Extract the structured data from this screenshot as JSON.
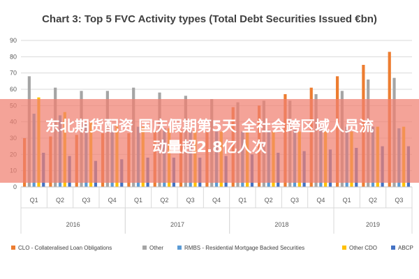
{
  "colors": {
    "CLO": "#ed7d31",
    "Other": "#a5a5a5",
    "RMBS": "#5b9bd5",
    "OtherCDO": "#ffc000",
    "ABCP": "#4472c4"
  },
  "chart_data": {
    "type": "bar",
    "title": "Chart 3: Top 5 FVC Activity types (Total Debt Securities Issued €bn)",
    "xlabel": "",
    "ylabel": "",
    "ylim": [
      0,
      90
    ],
    "yticks": [
      0,
      10,
      20,
      30,
      40,
      50,
      60,
      70,
      80,
      90
    ],
    "categories": [
      "Q1",
      "Q2",
      "Q3",
      "Q4",
      "Q1",
      "Q2",
      "Q3",
      "Q4",
      "Q1",
      "Q2",
      "Q3",
      "Q4",
      "Q1",
      "Q2",
      "Q3"
    ],
    "year_groups": [
      {
        "label": "2016",
        "count": 4
      },
      {
        "label": "2017",
        "count": 4
      },
      {
        "label": "2018",
        "count": 4
      },
      {
        "label": "2019",
        "count": 3
      }
    ],
    "legend_position": "bottom",
    "series": [
      {
        "name": "CLO - Collateralised Loan Obligations",
        "color_key": "CLO",
        "values": [
          30,
          31,
          32,
          33,
          33,
          34,
          35,
          34,
          49,
          50,
          57,
          61,
          68,
          75,
          83
        ]
      },
      {
        "name": "Other",
        "color_key": "Other",
        "values": [
          68,
          61,
          59,
          59,
          61,
          58,
          56,
          54,
          52,
          53,
          53,
          57,
          59,
          66,
          67
        ]
      },
      {
        "name": "RMBS - Residential Mortgage Backed Securities",
        "color_key": "RMBS",
        "values": [
          45,
          44,
          39,
          38,
          37,
          36,
          35,
          35,
          34,
          35,
          35,
          36,
          37,
          37,
          36
        ]
      },
      {
        "name": "Other CDO",
        "color_key": "OtherCDO",
        "values": [
          55,
          46,
          40,
          38,
          37,
          36,
          35,
          34,
          34,
          34,
          34,
          34,
          34,
          37,
          37
        ]
      },
      {
        "name": "ABCP",
        "color_key": "ABCP",
        "values": [
          21,
          19,
          16,
          17,
          18,
          18,
          18,
          19,
          20,
          21,
          22,
          23,
          24,
          25,
          25
        ]
      }
    ]
  },
  "overlay": {
    "line1": "东北期货配资 国庆假期第5天 全社会跨区域人员流",
    "line2": "动量超2.8亿人次"
  }
}
